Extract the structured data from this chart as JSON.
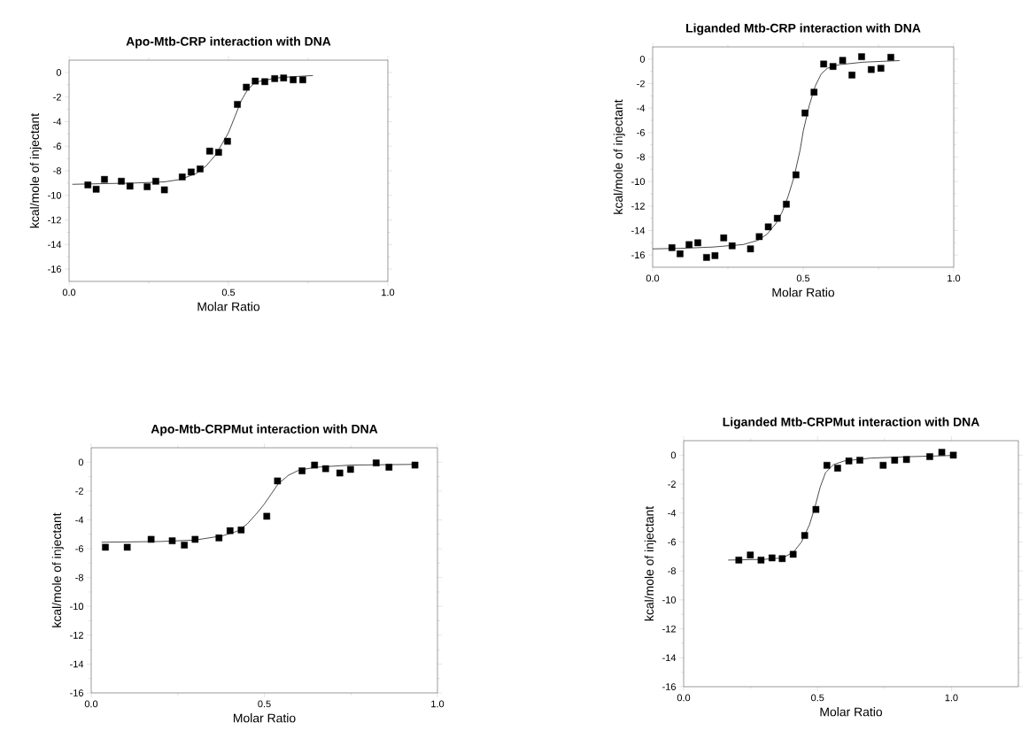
{
  "chart_data": [
    {
      "type": "scatter",
      "title": "Apo-Mtb-CRP interaction with DNA",
      "xlabel": "Molar Ratio",
      "ylabel": "kcal/mole of injectant",
      "xlim": [
        0,
        1
      ],
      "ylim": [
        -17,
        1
      ],
      "xticks": [
        {
          "value": 0,
          "label": "0.0"
        },
        {
          "value": 0.25,
          "label": null
        },
        {
          "value": 0.5,
          "label": "0.5"
        },
        {
          "value": 0.75,
          "label": null
        },
        {
          "value": 1,
          "label": "1.0"
        }
      ],
      "yticks": [
        0,
        {
          "value": -1,
          "label": null
        },
        -2,
        {
          "value": -3,
          "label": null
        },
        -4,
        {
          "value": -5,
          "label": null
        },
        -6,
        {
          "value": -7,
          "label": null
        },
        -8,
        {
          "value": -9,
          "label": null
        },
        -10,
        {
          "value": -11,
          "label": null
        },
        -12,
        {
          "value": -13,
          "label": null
        },
        -14,
        {
          "value": -15,
          "label": null
        },
        -16
      ],
      "series": [
        {
          "marker": "square",
          "color": "#000000",
          "x": [
            0.059,
            0.085,
            0.111,
            0.164,
            0.191,
            0.245,
            0.272,
            0.299,
            0.355,
            0.383,
            0.411,
            0.441,
            0.469,
            0.497,
            0.528,
            0.556,
            0.584,
            0.614,
            0.645,
            0.673,
            0.703,
            0.733
          ],
          "values": [
            -9.15,
            -9.5,
            -8.7,
            -8.85,
            -9.25,
            -9.3,
            -8.85,
            -9.55,
            -8.5,
            -8.1,
            -7.85,
            -6.4,
            -6.5,
            -5.6,
            -2.6,
            -1.2,
            -0.7,
            -0.75,
            -0.5,
            -0.45,
            -0.6,
            -0.6
          ]
        },
        {
          "type": "line",
          "marker": "none",
          "color": "#000000",
          "x": [
            0.01,
            0.1,
            0.2,
            0.3,
            0.35,
            0.4,
            0.43,
            0.46,
            0.48,
            0.5,
            0.52,
            0.54,
            0.56,
            0.58,
            0.6,
            0.65,
            0.7,
            0.765
          ],
          "values": [
            -9.1,
            -9.05,
            -9.0,
            -8.9,
            -8.7,
            -8.2,
            -7.6,
            -6.7,
            -5.8,
            -4.9,
            -3.6,
            -2.3,
            -1.4,
            -0.9,
            -0.7,
            -0.45,
            -0.35,
            -0.25
          ]
        }
      ]
    },
    {
      "type": "scatter",
      "title": "Liganded Mtb-CRP interaction with DNA",
      "xlabel": "Molar Ratio",
      "ylabel": "kcal/mole of injectant",
      "xlim": [
        0,
        1
      ],
      "ylim": [
        -17,
        1
      ],
      "xticks": [
        {
          "value": 0,
          "label": "0.0"
        },
        {
          "value": 0.25,
          "label": null
        },
        {
          "value": 0.5,
          "label": "0.5"
        },
        {
          "value": 0.75,
          "label": null
        },
        {
          "value": 1,
          "label": "1.0"
        }
      ],
      "yticks": [
        0,
        {
          "value": -1,
          "label": null
        },
        -2,
        {
          "value": -3,
          "label": null
        },
        -4,
        {
          "value": -5,
          "label": null
        },
        -6,
        {
          "value": -7,
          "label": null
        },
        -8,
        {
          "value": -9,
          "label": null
        },
        -10,
        {
          "value": -11,
          "label": null
        },
        -12,
        {
          "value": -13,
          "label": null
        },
        -14,
        {
          "value": -15,
          "label": null
        },
        -16
      ],
      "series": [
        {
          "marker": "square",
          "color": "#000000",
          "x": [
            0.064,
            0.091,
            0.121,
            0.15,
            0.179,
            0.207,
            0.236,
            0.264,
            0.325,
            0.354,
            0.384,
            0.414,
            0.444,
            0.476,
            0.506,
            0.536,
            0.568,
            0.599,
            0.631,
            0.662,
            0.694,
            0.726,
            0.758,
            0.791
          ],
          "values": [
            -15.4,
            -15.9,
            -15.15,
            -15.0,
            -16.2,
            -16.05,
            -14.6,
            -15.25,
            -15.5,
            -14.5,
            -13.7,
            -13.0,
            -11.85,
            -9.45,
            -4.4,
            -2.7,
            -0.4,
            -0.6,
            -0.1,
            -1.3,
            0.2,
            -0.85,
            -0.75,
            0.15
          ]
        },
        {
          "type": "line",
          "marker": "none",
          "color": "#000000",
          "x": [
            0.0,
            0.1,
            0.2,
            0.3,
            0.35,
            0.38,
            0.41,
            0.43,
            0.45,
            0.47,
            0.49,
            0.5,
            0.52,
            0.54,
            0.56,
            0.58,
            0.62,
            0.7,
            0.82
          ],
          "values": [
            -15.5,
            -15.45,
            -15.35,
            -15.15,
            -14.8,
            -14.3,
            -13.4,
            -12.5,
            -11.2,
            -9.6,
            -7.4,
            -5.9,
            -3.8,
            -2.2,
            -1.2,
            -0.75,
            -0.45,
            -0.25,
            -0.12
          ]
        }
      ]
    },
    {
      "type": "scatter",
      "title": "Apo-Mtb-CRPMut interaction with DNA",
      "xlabel": "Molar Ratio",
      "ylabel": "kcal/mole of injectant",
      "xlim": [
        0,
        1
      ],
      "ylim": [
        -16,
        1
      ],
      "xticks": [
        {
          "value": 0,
          "label": "0.0"
        },
        {
          "value": 0.25,
          "label": null
        },
        {
          "value": 0.5,
          "label": "0.5"
        },
        {
          "value": 0.75,
          "label": null
        },
        {
          "value": 1,
          "label": "1.0"
        }
      ],
      "yticks": [
        0,
        {
          "value": -1,
          "label": null
        },
        -2,
        {
          "value": -3,
          "label": null
        },
        -4,
        {
          "value": -5,
          "label": null
        },
        -6,
        {
          "value": -7,
          "label": null
        },
        -8,
        {
          "value": -9,
          "label": null
        },
        -10,
        {
          "value": -11,
          "label": null
        },
        -12,
        {
          "value": -13,
          "label": null
        },
        -14,
        {
          "value": -15,
          "label": null
        },
        -16
      ],
      "series": [
        {
          "marker": "square",
          "color": "#000000",
          "x": [
            0.041,
            0.104,
            0.173,
            0.234,
            0.269,
            0.3,
            0.369,
            0.401,
            0.433,
            0.507,
            0.538,
            0.609,
            0.645,
            0.677,
            0.718,
            0.749,
            0.823,
            0.86,
            0.935
          ],
          "values": [
            -5.9,
            -5.9,
            -5.35,
            -5.45,
            -5.75,
            -5.35,
            -5.25,
            -4.75,
            -4.7,
            -3.75,
            -1.3,
            -0.6,
            -0.2,
            -0.45,
            -0.75,
            -0.5,
            -0.05,
            -0.35,
            -0.2
          ]
        },
        {
          "type": "line",
          "marker": "none",
          "color": "#000000",
          "x": [
            0.03,
            0.2,
            0.3,
            0.38,
            0.42,
            0.45,
            0.48,
            0.5,
            0.52,
            0.54,
            0.57,
            0.6,
            0.65,
            0.75,
            0.935
          ],
          "values": [
            -5.55,
            -5.5,
            -5.4,
            -5.1,
            -4.8,
            -4.3,
            -3.5,
            -2.9,
            -2.2,
            -1.5,
            -0.9,
            -0.55,
            -0.35,
            -0.2,
            -0.15
          ]
        }
      ]
    },
    {
      "type": "scatter",
      "title": "Liganded Mtb-CRPMut interaction with DNA",
      "xlabel": "Molar Ratio",
      "ylabel": "kcal/mole of injectant",
      "xlim": [
        0,
        1.25
      ],
      "ylim": [
        -16,
        1
      ],
      "xticks": [
        {
          "value": 0,
          "label": "0.0"
        },
        {
          "value": 0.25,
          "label": null
        },
        {
          "value": 0.5,
          "label": "0.5"
        },
        {
          "value": 0.75,
          "label": null
        },
        {
          "value": 1,
          "label": "1.0"
        }
      ],
      "yticks": [
        0,
        {
          "value": -1,
          "label": null
        },
        -2,
        {
          "value": -3,
          "label": null
        },
        -4,
        {
          "value": -5,
          "label": null
        },
        -6,
        {
          "value": -7,
          "label": null
        },
        -8,
        {
          "value": -9,
          "label": null
        },
        -10,
        {
          "value": -11,
          "label": null
        },
        -12,
        {
          "value": -13,
          "label": null
        },
        -14,
        {
          "value": -15,
          "label": null
        },
        -16
      ],
      "series": [
        {
          "marker": "square",
          "color": "#000000",
          "x": [
            0.206,
            0.249,
            0.289,
            0.33,
            0.368,
            0.409,
            0.452,
            0.494,
            0.535,
            0.575,
            0.617,
            0.658,
            0.745,
            0.788,
            0.832,
            0.919,
            0.964,
            1.007
          ],
          "values": [
            -7.25,
            -6.9,
            -7.25,
            -7.1,
            -7.15,
            -6.85,
            -5.55,
            -3.75,
            -0.7,
            -0.9,
            -0.4,
            -0.35,
            -0.7,
            -0.35,
            -0.3,
            -0.1,
            0.2,
            0.0
          ]
        },
        {
          "type": "line",
          "marker": "none",
          "color": "#000000",
          "x": [
            0.166,
            0.3,
            0.37,
            0.41,
            0.44,
            0.47,
            0.49,
            0.51,
            0.53,
            0.56,
            0.6,
            0.7,
            0.85,
            1.01
          ],
          "values": [
            -7.25,
            -7.2,
            -7.1,
            -6.7,
            -6.0,
            -4.8,
            -3.6,
            -2.2,
            -1.2,
            -0.65,
            -0.4,
            -0.2,
            -0.1,
            -0.02
          ]
        }
      ]
    }
  ]
}
